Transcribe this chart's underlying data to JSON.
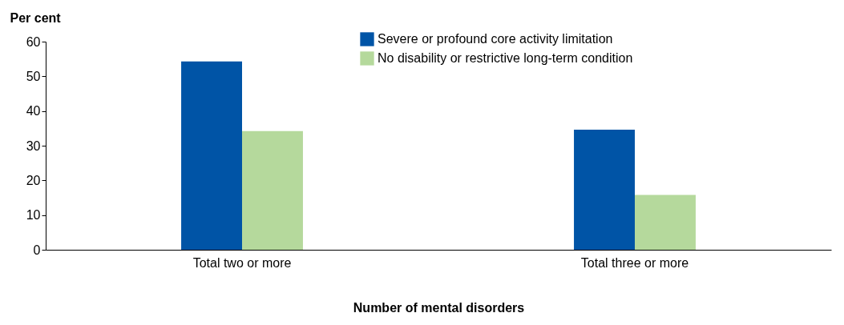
{
  "chart_data": {
    "type": "bar",
    "xlabel": "Number of mental disorders",
    "ylabel": "Per cent",
    "categories": [
      "Total two or more",
      "Total three or more"
    ],
    "series": [
      {
        "name": "Severe or profound core activity limitation",
        "color": "#0054a6",
        "values": [
          54.3,
          34.6
        ]
      },
      {
        "name": "No disability or restrictive long-term condition",
        "color": "#b5d99c",
        "values": [
          34.2,
          15.8
        ]
      }
    ],
    "ylim": [
      0,
      60
    ],
    "yticks": [
      0,
      10,
      20,
      30,
      40,
      50,
      60
    ],
    "grid": false,
    "legend": "top"
  }
}
